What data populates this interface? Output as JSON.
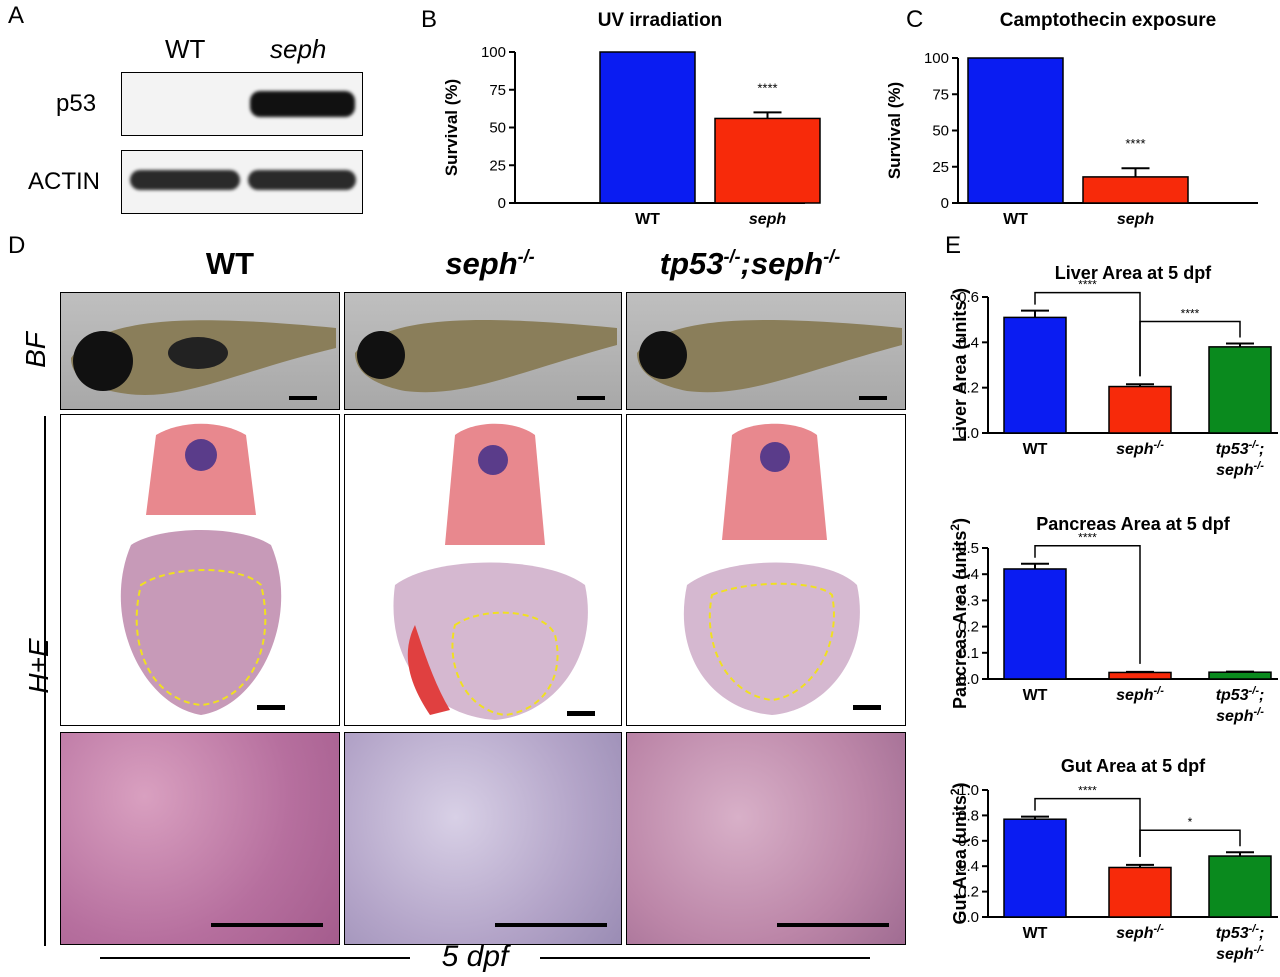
{
  "panels": {
    "A": {
      "letter": "A",
      "col_wt": "WT",
      "col_seph": "seph",
      "row_p53": "p53",
      "row_actin": "ACTIN"
    },
    "D": {
      "letter": "D",
      "geno_wt": "WT",
      "geno_seph": "seph",
      "geno_seph_sup": "-/-",
      "geno_tp53": "tp53",
      "geno_tp53_sup": "-/-",
      "geno_sep": ";",
      "geno_seph2": "seph",
      "geno_seph2_sup": "-/-",
      "row_bf": "BF",
      "row_he": "H+E",
      "footer": "5 dpf"
    },
    "E": {
      "letter": "E"
    }
  },
  "colors": {
    "wt": "#0a1cf2",
    "seph": "#f72a0a",
    "tp53_seph": "#0a8a1e"
  },
  "chart_data": [
    {
      "id": "B",
      "letter": "B",
      "type": "bar",
      "title": "UV irradiation",
      "ylabel": "Survival (%)",
      "categories": [
        "WT",
        "seph"
      ],
      "values": [
        100,
        56
      ],
      "errors": [
        0,
        4
      ],
      "ylim": [
        0,
        100
      ],
      "yticks": [
        "0",
        "25",
        "50",
        "75",
        "100"
      ],
      "annotations": [
        "****"
      ]
    },
    {
      "id": "C",
      "letter": "C",
      "type": "bar",
      "title": "Camptothecin exposure",
      "ylabel": "Survival (%)",
      "categories": [
        "WT",
        "seph"
      ],
      "values": [
        100,
        18
      ],
      "errors": [
        0,
        6
      ],
      "ylim": [
        0,
        100
      ],
      "yticks": [
        "0",
        "25",
        "50",
        "75",
        "100"
      ],
      "annotations": [
        "****"
      ]
    },
    {
      "id": "E1",
      "type": "bar",
      "title": "Liver Area at 5 dpf",
      "ylabel": "Liver Area (units",
      "ylabel_sup": "2",
      "ylabel_end": ")",
      "categories": [
        "WT",
        "seph-/-",
        "tp53-/-; seph-/-"
      ],
      "values": [
        0.51,
        0.205,
        0.38
      ],
      "errors": [
        0.03,
        0.01,
        0.015
      ],
      "ylim": [
        0,
        0.6
      ],
      "yticks": [
        "0.0",
        "0.2",
        "0.4",
        "0.6"
      ],
      "annotations": [
        "****",
        "****"
      ]
    },
    {
      "id": "E2",
      "type": "bar",
      "title": "Pancreas Area at 5 dpf",
      "ylabel": "Pancreas Area (units",
      "ylabel_sup": "2",
      "ylabel_end": ")",
      "categories": [
        "WT",
        "seph-/-",
        "tp53-/-; seph-/-"
      ],
      "values": [
        0.42,
        0.025,
        0.026
      ],
      "errors": [
        0.02,
        0.002,
        0.002
      ],
      "ylim": [
        0,
        0.5
      ],
      "yticks": [
        "0.0",
        "0.1",
        "0.2",
        "0.3",
        "0.4",
        "0.5"
      ],
      "annotations": [
        "****"
      ]
    },
    {
      "id": "E3",
      "type": "bar",
      "title": "Gut Area at 5 dpf",
      "ylabel": "Gut Area (units",
      "ylabel_sup": "2",
      "ylabel_end": ")",
      "categories": [
        "WT",
        "seph-/-",
        "tp53-/-; seph-/-"
      ],
      "values": [
        0.77,
        0.39,
        0.48
      ],
      "errors": [
        0.02,
        0.02,
        0.03
      ],
      "ylim": [
        0,
        1.0
      ],
      "yticks": [
        "0.0",
        "0.2",
        "0.4",
        "0.6",
        "0.8",
        "1.0"
      ],
      "annotations": [
        "****",
        "*"
      ]
    }
  ]
}
